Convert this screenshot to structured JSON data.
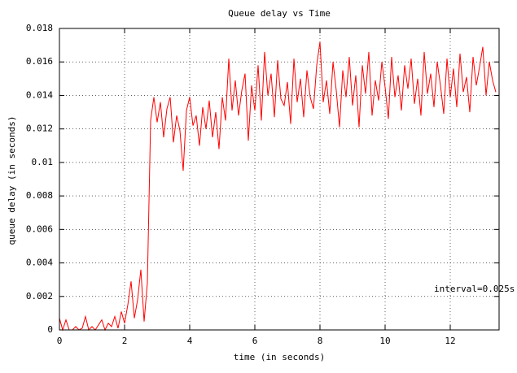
{
  "chart_data": {
    "type": "line",
    "title": "Queue delay vs Time",
    "x_label": "time (in seconds)",
    "y_label": "queue delay (in seconds)",
    "annotation": "interval=0.025s",
    "color": "#ff0000",
    "grid": true,
    "xlim": [
      0,
      13.5
    ],
    "xticks": [
      0,
      2,
      4,
      6,
      8,
      10,
      12
    ],
    "ylim": [
      0,
      0.018
    ],
    "yticks": [
      0,
      0.002,
      0.004,
      0.006,
      0.008,
      0.01,
      0.012,
      0.014,
      0.016,
      0.018
    ],
    "x": [
      0,
      0.1,
      0.2,
      0.3,
      0.4,
      0.5,
      0.6,
      0.7,
      0.8,
      0.9,
      1,
      1.1,
      1.2,
      1.3,
      1.4,
      1.5,
      1.6,
      1.7,
      1.8,
      1.9,
      2,
      2.1,
      2.2,
      2.3,
      2.4,
      2.5,
      2.6,
      2.7,
      2.8,
      2.9,
      3,
      3.1,
      3.2,
      3.3,
      3.4,
      3.5,
      3.6,
      3.7,
      3.8,
      3.9,
      4,
      4.1,
      4.2,
      4.3,
      4.4,
      4.5,
      4.6,
      4.7,
      4.8,
      4.9,
      5,
      5.1,
      5.2,
      5.3,
      5.4,
      5.5,
      5.6,
      5.7,
      5.8,
      5.9,
      6,
      6.1,
      6.2,
      6.3,
      6.4,
      6.5,
      6.6,
      6.7,
      6.8,
      6.9,
      7,
      7.1,
      7.2,
      7.3,
      7.4,
      7.5,
      7.6,
      7.7,
      7.8,
      7.9,
      8,
      8.1,
      8.2,
      8.3,
      8.4,
      8.5,
      8.6,
      8.7,
      8.8,
      8.9,
      9,
      9.1,
      9.2,
      9.3,
      9.4,
      9.5,
      9.6,
      9.7,
      9.8,
      9.9,
      10,
      10.1,
      10.2,
      10.3,
      10.4,
      10.5,
      10.6,
      10.7,
      10.8,
      10.9,
      11,
      11.1,
      11.2,
      11.3,
      11.4,
      11.5,
      11.6,
      11.7,
      11.8,
      11.9,
      12,
      12.1,
      12.2,
      12.3,
      12.4,
      12.5,
      12.6,
      12.7,
      12.8,
      12.9,
      13,
      13.1,
      13.2,
      13.3,
      13.4
    ],
    "values": [
      0.0007,
      0,
      0.0006,
      0,
      0,
      0.0002,
      0,
      0.0001,
      0.0008,
      0,
      0.0002,
      0,
      0.0003,
      0.0006,
      0,
      0.0004,
      0.0002,
      0.0008,
      0.0001,
      0.0011,
      0.0004,
      0.0015,
      0.0029,
      0.0007,
      0.0018,
      0.0036,
      0.0005,
      0.0028,
      0.0125,
      0.0139,
      0.0124,
      0.0136,
      0.0115,
      0.0132,
      0.0139,
      0.0112,
      0.0128,
      0.0119,
      0.0095,
      0.0131,
      0.0139,
      0.0122,
      0.0128,
      0.011,
      0.0133,
      0.012,
      0.0137,
      0.0115,
      0.013,
      0.0108,
      0.0139,
      0.0125,
      0.0162,
      0.0131,
      0.0149,
      0.0128,
      0.0143,
      0.0153,
      0.0113,
      0.0146,
      0.0131,
      0.0158,
      0.0125,
      0.0166,
      0.014,
      0.0153,
      0.0127,
      0.0161,
      0.0138,
      0.0134,
      0.0148,
      0.0123,
      0.0162,
      0.0136,
      0.015,
      0.0127,
      0.0155,
      0.0139,
      0.0132,
      0.0158,
      0.0172,
      0.0136,
      0.0149,
      0.0129,
      0.016,
      0.0143,
      0.0121,
      0.0155,
      0.0139,
      0.0163,
      0.0134,
      0.0152,
      0.0121,
      0.0158,
      0.0141,
      0.0166,
      0.0128,
      0.0149,
      0.0137,
      0.016,
      0.0145,
      0.0126,
      0.0163,
      0.0139,
      0.0152,
      0.0131,
      0.0158,
      0.0144,
      0.0162,
      0.0135,
      0.015,
      0.0128,
      0.0166,
      0.0141,
      0.0153,
      0.0133,
      0.016,
      0.0146,
      0.0129,
      0.0162,
      0.0139,
      0.0156,
      0.0133,
      0.0165,
      0.0142,
      0.0151,
      0.013,
      0.0163,
      0.0146,
      0.0157,
      0.0169,
      0.014,
      0.016,
      0.0149,
      0.0142
    ]
  }
}
